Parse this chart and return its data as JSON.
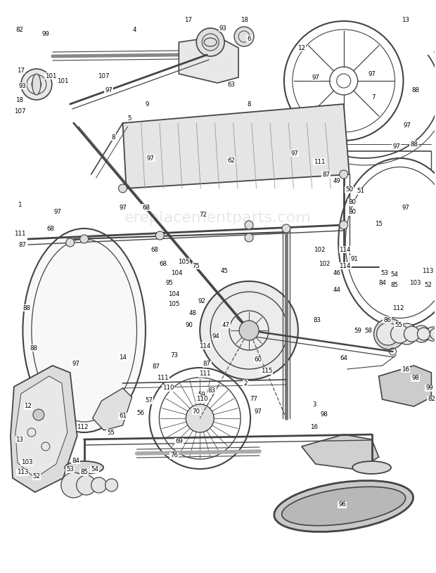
{
  "bg_color": "#ffffff",
  "line_color": "#444444",
  "watermark": "ereplacementparts.com",
  "watermark_color": "#cccccc",
  "fig_width": 6.2,
  "fig_height": 8.15,
  "dpi": 100
}
